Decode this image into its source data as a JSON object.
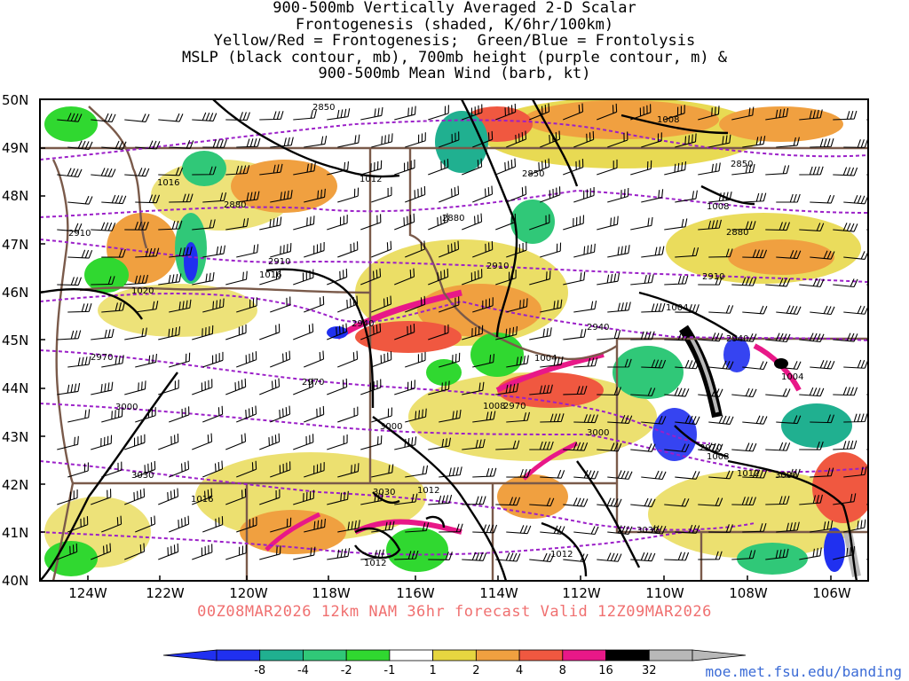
{
  "title_lines": [
    "900-500mb Vertically Averaged 2-D Scalar",
    "Frontogenesis (shaded, K/6hr/100km)",
    "Yellow/Red = Frontogenesis;  Green/Blue = Frontolysis",
    "MSLP (black contour, mb), 700mb height (purple contour, m) &",
    "900-500mb Mean Wind (barb, kt)"
  ],
  "footer": {
    "run_info": "00Z08MAR2026 12km NAM 36hr forecast Valid 12Z09MAR2026",
    "credit": "moe.met.fsu.edu/banding"
  },
  "map": {
    "lat_labels": [
      "50N",
      "49N",
      "48N",
      "47N",
      "46N",
      "45N",
      "44N",
      "43N",
      "42N",
      "41N",
      "40N"
    ],
    "lon_labels": [
      "124W",
      "122W",
      "120W",
      "118W",
      "116W",
      "114W",
      "112W",
      "110W",
      "108W",
      "106W"
    ],
    "height_labels": [
      "2850",
      "2850",
      "2850",
      "2880",
      "2880",
      "2880",
      "2910",
      "2910",
      "2910",
      "2910",
      "2940",
      "2940",
      "2940",
      "2970",
      "2970",
      "2970",
      "2970",
      "3000",
      "3000",
      "3000",
      "3000",
      "3030",
      "3030",
      "3030"
    ],
    "pressure_labels": [
      "1008",
      "1008",
      "1016",
      "1012",
      "1020",
      "1016",
      "1004",
      "1004",
      "1004",
      "1008",
      "1008",
      "1012",
      "1012",
      "1016",
      "1012",
      "1012"
    ],
    "colors": {
      "height_contour": "#9b1fc8",
      "pressure_contour": "#000000",
      "boundary": "#7a5a4a",
      "run_info_text": "#f07070",
      "credit_text": "#3b6bd6"
    }
  },
  "colorbar": {
    "labels": [
      "-8",
      "-4",
      "-2",
      "-1",
      "1",
      "2",
      "4",
      "8",
      "16",
      "32"
    ],
    "colors": [
      "#2030f0",
      "#20b090",
      "#30c878",
      "#30d830",
      "#ffffff",
      "#e6d640",
      "#f0a040",
      "#f05840",
      "#e81888",
      "#000000",
      "#b8b8b8"
    ]
  }
}
